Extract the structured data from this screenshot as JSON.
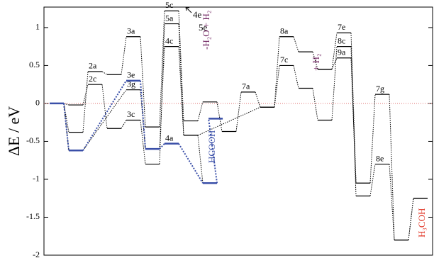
{
  "chart_data": {
    "type": "energy_diagram",
    "ylabel": "ΔE / eV",
    "ylim": [
      -2,
      1.27
    ],
    "yticks": [
      -2,
      -1.5,
      -1,
      -0.5,
      0,
      0.5,
      1
    ],
    "zero_line": {
      "value": 0,
      "color": "#e07070"
    },
    "series": [
      {
        "color": "#000000",
        "x": [
          0,
          1,
          2,
          3,
          4,
          5,
          6,
          7,
          8,
          9,
          10,
          11,
          12,
          13,
          14,
          15,
          16,
          17,
          18,
          19
        ],
        "values": [
          0,
          -0.38,
          0.42,
          0.38,
          0.88,
          -0.31,
          1.22,
          -0.23,
          0.02,
          -0.37,
          0.15,
          -0.05,
          0.88,
          0.68,
          0.45,
          0.93,
          -1.05,
          0.12,
          -1.8,
          -1.25
        ],
        "labels": [
          null,
          null,
          "2a",
          null,
          "3a",
          null,
          "5c",
          null,
          null,
          null,
          "7a",
          null,
          "8a",
          null,
          null,
          "7e",
          null,
          "7g",
          null,
          null
        ]
      },
      {
        "color": "#000000",
        "x": [
          0,
          1,
          2,
          3,
          4,
          5,
          6,
          7,
          11,
          12,
          13,
          14,
          15,
          16,
          17,
          18,
          19
        ],
        "values": [
          0,
          -0.02,
          0.25,
          -0.33,
          -0.22,
          -0.8,
          1.05,
          -0.42,
          -0.05,
          0.5,
          0.2,
          -0.22,
          0.75,
          -1.22,
          -0.8,
          -1.8,
          -1.25
        ],
        "labels": [
          null,
          null,
          "2c",
          null,
          "3c",
          null,
          "5a",
          null,
          null,
          "7c",
          null,
          null,
          "8c",
          null,
          "8e",
          null,
          null
        ]
      },
      {
        "color": "#000000",
        "x": [
          0,
          1,
          4,
          5,
          6,
          7,
          8
        ],
        "values": [
          0,
          -0.62,
          0.18,
          -0.6,
          0.75,
          -0.42,
          -1.05
        ],
        "labels": [
          null,
          null,
          "3g",
          null,
          "4c",
          null,
          null
        ]
      },
      {
        "color": "#000000",
        "x": [
          14,
          15,
          16
        ],
        "values": [
          0.45,
          0.6,
          -1.05
        ],
        "labels": [
          null,
          "9a",
          null
        ]
      },
      {
        "color": "#3a4fa8",
        "x": [
          0,
          1,
          4,
          5,
          6,
          8,
          8.3
        ],
        "values": [
          0,
          -0.62,
          0.3,
          -0.6,
          -0.53,
          -1.05,
          -0.2
        ],
        "labels": [
          null,
          null,
          "3e",
          null,
          "4a",
          null,
          null
        ]
      }
    ],
    "annotations": [
      {
        "text": "4e",
        "color": "#000000"
      },
      {
        "text": "5e",
        "color": "#000000"
      },
      {
        "text": "-H₂O + H₂",
        "color": "#6a1a5a"
      },
      {
        "text": "+ H₂",
        "color": "#6a1a5a"
      },
      {
        "text": "HCOOH",
        "color": "#3a4fa8"
      },
      {
        "text": "H₃COH",
        "color": "#e03020"
      }
    ]
  }
}
